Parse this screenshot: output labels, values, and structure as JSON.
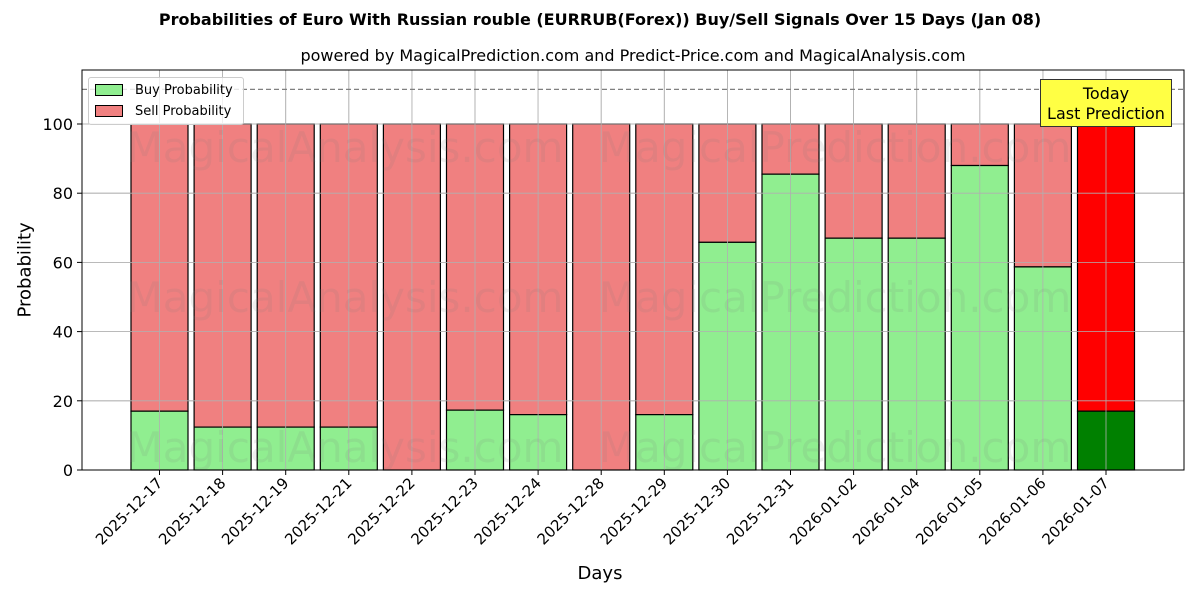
{
  "header": {
    "title": "Probabilities of Euro With Russian rouble (EURRUB(Forex)) Buy/Sell Signals Over 15 Days (Jan 08)",
    "subtitle": "powered by MagicalPrediction.com and Predict-Price.com and MagicalAnalysis.com"
  },
  "legend": {
    "buy_label": "Buy Probability",
    "sell_label": "Sell Probability"
  },
  "annotation": {
    "line1": "Today",
    "line2": "Last Prediction"
  },
  "watermarks": [
    "MagicalAnalysis.com",
    "MagicalPrediction.com"
  ],
  "colors": {
    "buy": "#90ee90",
    "sell": "#f08080",
    "today_buy": "#008000",
    "today_sell": "#ff0000",
    "annotation_bg": "#ffff44"
  },
  "chart_data": {
    "type": "bar",
    "stacked": true,
    "title": "Probabilities of Euro With Russian rouble (EURRUB(Forex)) Buy/Sell Signals Over 15 Days (Jan 08)",
    "subtitle": "powered by MagicalPrediction.com and Predict-Price.com and MagicalAnalysis.com",
    "xlabel": "Days",
    "ylabel": "Probability",
    "ylim": [
      0,
      115
    ],
    "yticks": [
      0,
      20,
      40,
      60,
      80,
      100
    ],
    "grid": true,
    "legend_position": "upper left",
    "reference_line": {
      "y": 110,
      "style": "dashed"
    },
    "categories": [
      "2025-12-17",
      "2025-12-18",
      "2025-12-19",
      "2025-12-21",
      "2025-12-22",
      "2025-12-23",
      "2025-12-24",
      "2025-12-28",
      "2025-12-29",
      "2025-12-30",
      "2025-12-31",
      "2026-01-02",
      "2026-01-04",
      "2026-01-05",
      "2026-01-06",
      "2026-01-07"
    ],
    "series": [
      {
        "name": "Buy Probability",
        "values": [
          17,
          12.4,
          12.4,
          12.4,
          0,
          17.3,
          16,
          0,
          16,
          65.8,
          85.5,
          67,
          67,
          88,
          58.7,
          17
        ]
      },
      {
        "name": "Sell Probability",
        "values": [
          83,
          87.6,
          87.6,
          87.6,
          100,
          82.7,
          84,
          100,
          84,
          34.2,
          14.5,
          33,
          33,
          12,
          41.3,
          83
        ]
      }
    ],
    "highlight_last": true
  }
}
